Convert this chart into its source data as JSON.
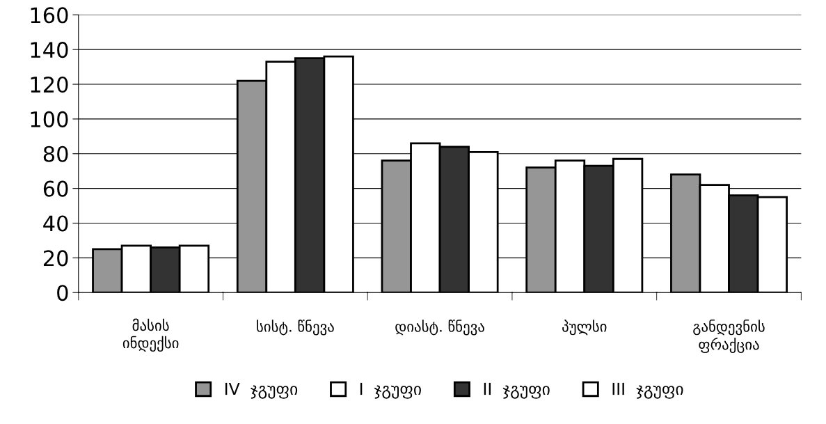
{
  "chart_data": {
    "type": "bar",
    "categories": [
      "მასის\nინდექსი",
      "სისტ. წნევა",
      "დიასტ. წნევა",
      "პულსი",
      "განდევნის\nფრაქცია"
    ],
    "series": [
      {
        "name": "IV  ჯგუფი",
        "color": "#969696",
        "values": [
          25,
          122,
          76,
          72,
          68
        ]
      },
      {
        "name": "I  ჯგუფი",
        "color": "#ffffff",
        "values": [
          27,
          133,
          86,
          76,
          62
        ]
      },
      {
        "name": "II  ჯგუფი",
        "color": "#333333",
        "values": [
          26,
          135,
          84,
          73,
          56
        ]
      },
      {
        "name": "III  ჯგუფი",
        "color": "#ffffff",
        "values": [
          27,
          136,
          81,
          77,
          55
        ]
      }
    ],
    "ylim": [
      0,
      160
    ],
    "yticks": [
      0,
      20,
      40,
      60,
      80,
      100,
      120,
      140,
      160
    ],
    "grid": "y",
    "legend": "bottom"
  }
}
